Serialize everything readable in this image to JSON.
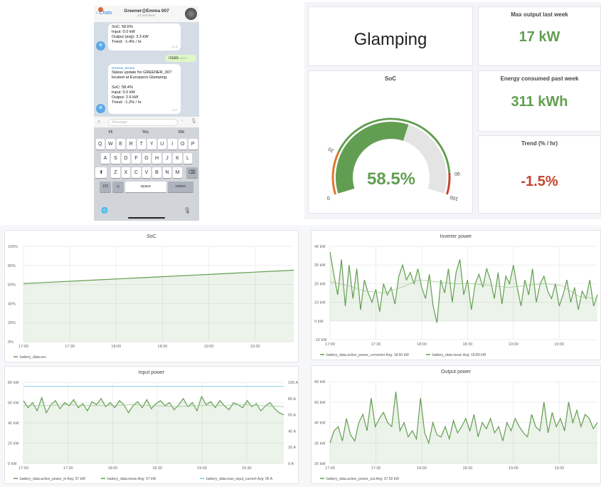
{
  "telegram": {
    "back_label": "Chats",
    "chat_title": "Greener@Emma 007",
    "members": "10 members",
    "message1": {
      "lines": [
        "SoC: 58.6%",
        "Input: 0.0 kW",
        "Output (avg): 3.3 kW",
        "Trend: -1.4% / hr"
      ],
      "time": "11:15"
    },
    "sent": {
      "text": "/stats",
      "time": "11:27"
    },
    "message2": {
      "sender": "Greener_Emma",
      "lines": [
        "Status update for GREENER_007",
        "located at Europarcs Glamping:",
        "",
        "SoC: 58.4%",
        "Input: 0.0 kW",
        "Output: 2.6 kW",
        "Trend: -1.2% / hr"
      ],
      "time": "11:27"
    },
    "input_placeholder": "Message",
    "suggestions": [
      "Hi",
      "Yes",
      "We"
    ],
    "keys": {
      "row1": [
        "Q",
        "W",
        "E",
        "R",
        "T",
        "Y",
        "U",
        "I",
        "O",
        "P"
      ],
      "row2": [
        "A",
        "S",
        "D",
        "F",
        "G",
        "H",
        "J",
        "K",
        "L"
      ],
      "row3": [
        "Z",
        "X",
        "C",
        "V",
        "B",
        "N",
        "M"
      ],
      "num": "123",
      "space": "space",
      "return": "return"
    }
  },
  "dashboard": {
    "site_name": "Glamping",
    "max_output": {
      "title": "Max output last week",
      "value": "17 kW"
    },
    "energy": {
      "title": "Energy consumed past week",
      "value": "311 kWh"
    },
    "trend": {
      "title": "Trend (% / hr)",
      "value": "-1.5%"
    },
    "gauge": {
      "title": "SoC",
      "value": 58.5,
      "display": "58.5%",
      "min": 0,
      "max": 100,
      "thresholds": [
        20,
        90
      ],
      "tick_labels": [
        "0",
        "20",
        "90",
        "100"
      ]
    },
    "colors": {
      "green": "#629e51",
      "red": "#c4452f",
      "orange": "#e0752d",
      "grey": "#e4e4e4"
    }
  },
  "chart_data": [
    {
      "type": "area",
      "title": "SoC",
      "x_ticks": [
        "17:00",
        "17:30",
        "18:00",
        "18:30",
        "19:00",
        "19:30"
      ],
      "x_range_minutes": [
        0,
        175
      ],
      "y_ticks": [
        "0%",
        "20%",
        "40%",
        "60%",
        "80%",
        "100%"
      ],
      "ylim": [
        0,
        100
      ],
      "series": [
        {
          "name": "battery_data.soc",
          "legend": "battery_data.soc",
          "values": [
            61,
            62,
            63,
            64,
            65,
            66,
            67,
            68,
            69,
            70,
            71,
            72,
            73,
            74,
            75
          ]
        }
      ]
    },
    {
      "type": "line",
      "title": "Input power",
      "x_ticks": [
        "17:00",
        "17:30",
        "18:00",
        "18:30",
        "19:00",
        "19:30"
      ],
      "x_range_minutes": [
        0,
        175
      ],
      "y_ticks": [
        "0 kW",
        "20 kW",
        "40 kW",
        "60 kW",
        "80 kW"
      ],
      "ylim": [
        0,
        80
      ],
      "y2_ticks": [
        "0 A",
        "20 A",
        "40 A",
        "60 A",
        "80 A",
        "100 A"
      ],
      "y2lim": [
        0,
        100
      ],
      "series": [
        {
          "name": "battery_data.active_power_in",
          "legend": "battery_data.active_power_in  Avg: 57 kW",
          "values": [
            62,
            55,
            60,
            52,
            65,
            50,
            58,
            62,
            54,
            60,
            57,
            63,
            55,
            59,
            52,
            61,
            58,
            64,
            56,
            60,
            55,
            62,
            58,
            50,
            57,
            61,
            55,
            63,
            54,
            59,
            62,
            57,
            60,
            53,
            58,
            64,
            56,
            60,
            52,
            66,
            58,
            61,
            55,
            62,
            57,
            53,
            60,
            58,
            55,
            62,
            56,
            59,
            52,
            57,
            60,
            54,
            50,
            48
          ]
        },
        {
          "name": "battery_data.mean",
          "legend": "battery_data.mean  Avg: 57 kW",
          "values": [
            57,
            57,
            58,
            57,
            57,
            58,
            57,
            56,
            57,
            57,
            58,
            57,
            56
          ]
        },
        {
          "name": "battery_data.max_input_current",
          "legend": "battery_data.max_input_current  Avg: 95 A",
          "axis": "right",
          "values": [
            95,
            95
          ]
        }
      ]
    },
    {
      "type": "line",
      "title": "Inverter power",
      "x_ticks": [
        "17:00",
        "17:30",
        "18:00",
        "18:30",
        "19:00",
        "19:30"
      ],
      "x_range_minutes": [
        0,
        175
      ],
      "y_ticks": [
        "-10 kW",
        "0 kW",
        "10 kW",
        "20 kW",
        "30 kW",
        "40 kW"
      ],
      "ylim": [
        -10,
        40
      ],
      "series": [
        {
          "name": "battery_data.active_power_converter",
          "legend": "battery_data.active_power_converter  Avg: 18.60 kW",
          "values": [
            37,
            25,
            14,
            33,
            8,
            30,
            12,
            28,
            6,
            22,
            15,
            10,
            17,
            5,
            20,
            14,
            18,
            9,
            24,
            30,
            22,
            26,
            20,
            28,
            18,
            12,
            25,
            8,
            -1,
            22,
            15,
            28,
            10,
            26,
            33,
            14,
            22,
            6,
            20,
            25,
            18,
            28,
            22,
            12,
            26,
            9,
            24,
            20,
            30,
            18,
            8,
            22,
            14,
            28,
            10,
            20,
            24,
            16,
            12,
            20,
            8,
            14,
            22,
            10,
            18,
            6,
            16,
            12,
            22,
            8,
            14
          ]
        },
        {
          "name": "battery_data.mean",
          "legend": "battery_data.mean  Avg: 18.89 kW",
          "values": [
            21,
            19,
            16,
            15,
            18,
            22,
            21,
            20,
            20,
            19,
            18,
            19,
            20,
            19,
            13,
            12
          ]
        }
      ]
    },
    {
      "type": "line",
      "title": "Output power",
      "x_ticks": [
        "17:00",
        "17:30",
        "18:00",
        "18:30",
        "19:00",
        "19:30"
      ],
      "x_range_minutes": [
        0,
        175
      ],
      "y_ticks": [
        "20 kW",
        "30 kW",
        "40 kW",
        "50 kW",
        "60 kW"
      ],
      "ylim": [
        20,
        60
      ],
      "series": [
        {
          "name": "battery_data.active_power_out",
          "legend": "battery_data.active_power_out  Avg: 37.02 kW",
          "values": [
            30,
            36,
            38,
            31,
            42,
            34,
            31,
            40,
            44,
            36,
            52,
            38,
            42,
            45,
            40,
            38,
            55,
            36,
            40,
            33,
            36,
            32,
            52,
            35,
            30,
            40,
            34,
            33,
            38,
            32,
            41,
            35,
            38,
            42,
            36,
            44,
            33,
            40,
            37,
            42,
            35,
            38,
            31,
            40,
            36,
            42,
            38,
            35,
            33,
            44,
            38,
            36,
            50,
            35,
            45,
            38,
            42,
            36,
            50,
            40,
            46,
            38,
            44,
            42,
            37,
            40
          ]
        }
      ]
    }
  ]
}
